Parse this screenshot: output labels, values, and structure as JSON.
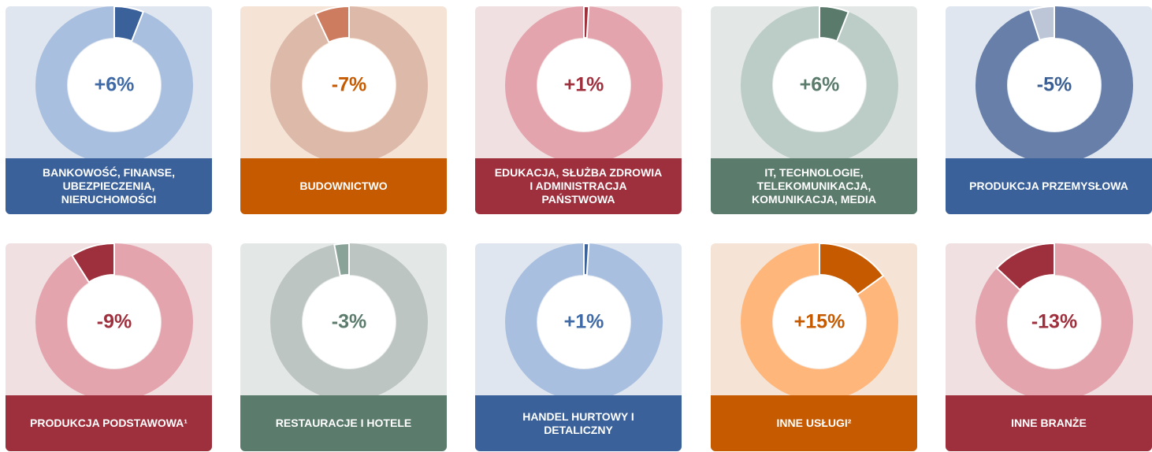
{
  "chart_data": [
    {
      "type": "pie",
      "title": "BANKOWOŚĆ, FINANSE, UBEZPIECZENIA, NIERUCHOMOŚCI",
      "values": [
        6
      ],
      "value_labels": [
        "+6%"
      ],
      "color": "#3a619a",
      "ring_color": "#a9bfdf",
      "background": "#dfe6ef",
      "label_color": "#3a619a",
      "text_color": "#3f6aa6"
    },
    {
      "type": "pie",
      "title": "BUDOWNICTWO",
      "values": [
        -7
      ],
      "value_labels": [
        "-7%"
      ],
      "color": "#cd7c5f",
      "ring_color": "#ddb9aa",
      "background": "#f5e4d6",
      "label_color": "#c55a00",
      "text_color": "#c55a00"
    },
    {
      "type": "pie",
      "title": "EDUKACJA, SŁUŻBA ZDROWIA I ADMINISTRACJA PAŃSTWOWA",
      "values": [
        1
      ],
      "value_labels": [
        "+1%"
      ],
      "color": "#a0303c",
      "ring_color": "#e4a4ad",
      "background": "#f0e0e1",
      "label_color": "#9e2f3c",
      "text_color": "#9e2f3c"
    },
    {
      "type": "pie",
      "title": "IT, TECHNOLOGIE, TELEKOMUNIKACJA, KOMUNIKACJA, MEDIA",
      "values": [
        6
      ],
      "value_labels": [
        "+6%"
      ],
      "color": "#5a7a6c",
      "ring_color": "#bccdc7",
      "background": "#e3e8e6",
      "label_color": "#5b7b6c",
      "text_color": "#5b7b6c"
    },
    {
      "type": "pie",
      "title": "PRODUKCJA PRZEMYSŁOWA",
      "values": [
        -5
      ],
      "value_labels": [
        "-5%"
      ],
      "color": "#bcc6d6",
      "ring_color": "#6880a9",
      "background": "#dfe6ef",
      "label_color": "#3a619a",
      "text_color": "#3b5f92"
    },
    {
      "type": "pie",
      "title": "PRODUKCJA PODSTAWOWA¹",
      "values": [
        -9
      ],
      "value_labels": [
        "-9%"
      ],
      "color": "#9e2f3c",
      "ring_color": "#e4a4ad",
      "background": "#f0e0e1",
      "label_color": "#9e2f3c",
      "text_color": "#9e2f3c"
    },
    {
      "type": "pie",
      "title": "RESTAURACJE I HOTELE",
      "values": [
        -3
      ],
      "value_labels": [
        "-3%"
      ],
      "color": "#8aa398",
      "ring_color": "#bdc5c2",
      "background": "#e3e8e6",
      "label_color": "#5b7b6c",
      "text_color": "#5b7b6c"
    },
    {
      "type": "pie",
      "title": "HANDEL HURTOWY I DETALICZNY",
      "values": [
        1
      ],
      "value_labels": [
        "+1%"
      ],
      "color": "#3a619a",
      "ring_color": "#a9bfdf",
      "background": "#dfe6ef",
      "label_color": "#3a619a",
      "text_color": "#3f6aa6"
    },
    {
      "type": "pie",
      "title": "INNE USŁUGI²",
      "values": [
        15
      ],
      "value_labels": [
        "+15%"
      ],
      "color": "#c55a00",
      "ring_color": "#ffb67a",
      "background": "#f5e4d6",
      "label_color": "#c55a00",
      "text_color": "#c55a00"
    },
    {
      "type": "pie",
      "title": "INNE BRANŻE",
      "values": [
        -13
      ],
      "value_labels": [
        "-13%"
      ],
      "color": "#9e2f3c",
      "ring_color": "#e4a4ad",
      "background": "#f0e0e1",
      "label_color": "#9e2f3c",
      "text_color": "#9e2f3c"
    }
  ]
}
